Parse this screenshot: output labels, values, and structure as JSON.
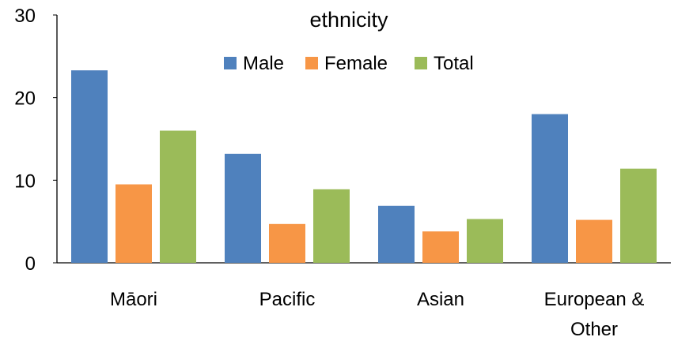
{
  "chart_data": {
    "type": "bar",
    "title": "ethnicity",
    "xlabel": "",
    "ylabel": "",
    "ylim": [
      0,
      30
    ],
    "yticks": [
      "0",
      "10",
      "20",
      "30"
    ],
    "grid": false,
    "legend_position": "top-center",
    "categories": [
      [
        "Māori"
      ],
      [
        "Pacific"
      ],
      [
        "Asian"
      ],
      [
        "European &",
        "Other"
      ]
    ],
    "series": [
      {
        "name": "Male",
        "color": "#4F81BD",
        "values": [
          23.3,
          13.2,
          6.9,
          18.0
        ]
      },
      {
        "name": "Female",
        "color": "#F79646",
        "values": [
          9.5,
          4.7,
          3.8,
          5.2
        ]
      },
      {
        "name": "Total",
        "color": "#9BBB59",
        "values": [
          16.0,
          8.9,
          5.3,
          11.4
        ]
      }
    ]
  }
}
